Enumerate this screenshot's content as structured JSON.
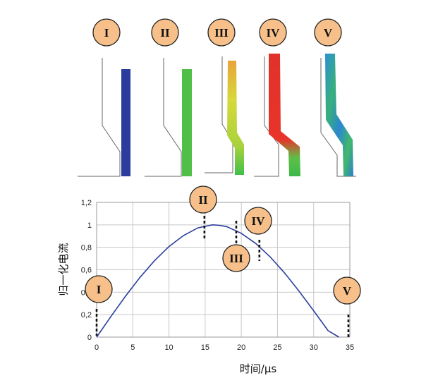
{
  "stage_labels": [
    "I",
    "II",
    "III",
    "IV",
    "V"
  ],
  "chart_data": {
    "type": "line",
    "xlabel": "时间/μs",
    "ylabel": "归一化电流",
    "xlim": [
      0,
      35
    ],
    "ylim": [
      0,
      1.2
    ],
    "x_ticks": [
      "0",
      "5",
      "10",
      "15",
      "20",
      "25",
      "30",
      "35"
    ],
    "y_ticks": [
      "0",
      "0,2",
      "0,4",
      "0,6",
      "0,8",
      "1",
      "1,2"
    ],
    "grid": true,
    "line_color": "#2b3f9e",
    "series": [
      {
        "x": [
          0,
          2,
          4,
          6,
          8,
          10,
          12,
          14,
          16,
          17,
          18,
          20,
          22,
          24,
          26,
          28,
          30,
          32,
          33.5
        ],
        "y": [
          0,
          0.186,
          0.365,
          0.532,
          0.681,
          0.807,
          0.905,
          0.973,
          1.0,
          0.995,
          0.984,
          0.925,
          0.834,
          0.714,
          0.57,
          0.408,
          0.235,
          0.057,
          0
        ]
      }
    ],
    "annotations": [
      {
        "label": "I",
        "x": 0
      },
      {
        "label": "II",
        "x": 14.9
      },
      {
        "label": "III",
        "x": 19.3
      },
      {
        "label": "IV",
        "x": 22.5
      },
      {
        "label": "V",
        "x": 34.8
      }
    ]
  }
}
